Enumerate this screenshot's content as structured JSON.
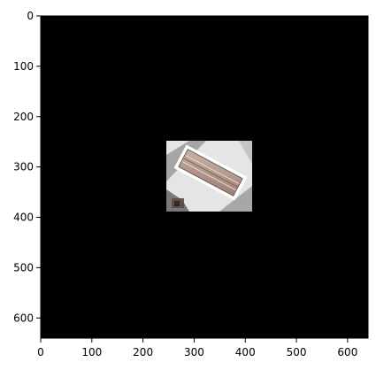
{
  "image": {
    "description_type": "satellite-image-crop",
    "background_color": "#000000",
    "x_axis": {
      "ticks": [
        "0",
        "100",
        "200",
        "300",
        "400",
        "500",
        "600"
      ],
      "range": [
        0,
        640
      ]
    },
    "y_axis": {
      "ticks": [
        "0",
        "100",
        "200",
        "300",
        "400",
        "500",
        "600"
      ],
      "range": [
        0,
        640
      ],
      "inverted": true
    },
    "patch": {
      "x_range": [
        246,
        413
      ],
      "y_range": [
        252,
        388
      ]
    }
  }
}
